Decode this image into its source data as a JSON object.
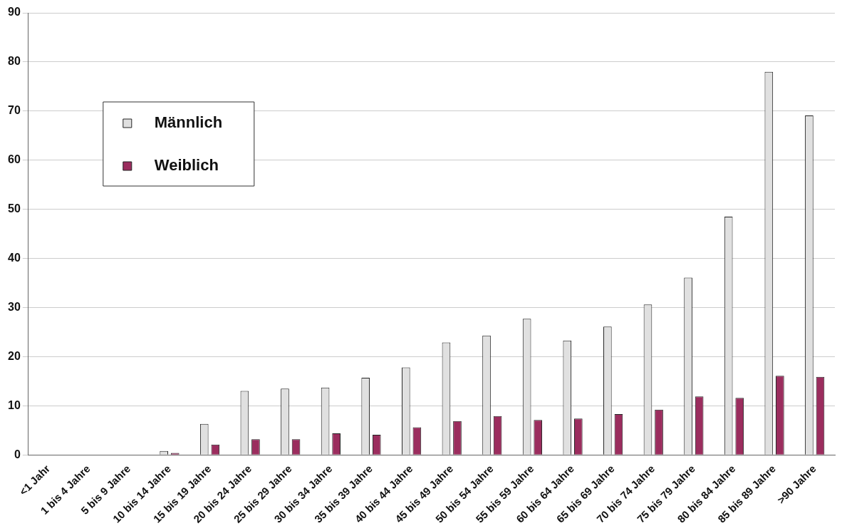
{
  "chart_data": {
    "type": "bar",
    "categories": [
      "<1 Jahr",
      "1 bis 4 Jahre",
      "5 bis 9 Jahre",
      "10 bis 14 Jahre",
      "15 bis 19 Jahre",
      "20 bis 24 Jahre",
      "25 bis 29 Jahre",
      "30 bis 34 Jahre",
      "35 bis 39 Jahre",
      "40 bis 44 Jahre",
      "45 bis 49 Jahre",
      "50 bis 54 Jahre",
      "55 bis 59 Jahre",
      "60 bis 64 Jahre",
      "65 bis 69 Jahre",
      "70 bis 74 Jahre",
      "75 bis 79 Jahre",
      "80 bis 84 Jahre",
      "85 bis 89 Jahre",
      ">90 Jahre"
    ],
    "series": [
      {
        "name": "Männlich",
        "color": "#e0e0e0",
        "values": [
          0,
          0,
          0,
          0.8,
          6.3,
          13,
          13.5,
          13.7,
          15.7,
          17.8,
          22.9,
          24.3,
          27.7,
          23.3,
          26.1,
          30.6,
          36.1,
          48.5,
          78,
          69.1
        ]
      },
      {
        "name": "Weiblich",
        "color": "#9b2d5e",
        "values": [
          0,
          0,
          0,
          0.4,
          2.1,
          3.2,
          3.2,
          4.4,
          4.1,
          5.6,
          6.9,
          7.9,
          7.1,
          7.4,
          8.3,
          9.2,
          11.9,
          11.6,
          16.1,
          15.9
        ]
      }
    ],
    "ylim": [
      0,
      90
    ],
    "yticks": [
      0,
      10,
      20,
      30,
      40,
      50,
      60,
      70,
      80,
      90
    ],
    "grid": "y",
    "legend": "top left"
  }
}
